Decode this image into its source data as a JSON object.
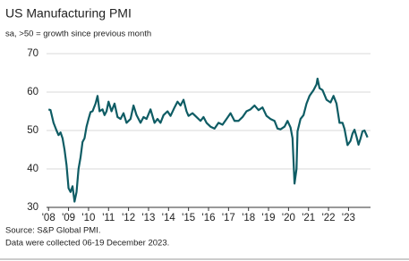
{
  "chart_data": {
    "type": "line",
    "title": "US Manufacturing PMI",
    "subtitle": "sa, >50 = growth since previous month",
    "source": "Source: S&P Global PMI.",
    "note": "Data were collected 06-19 December 2023.",
    "xlim": [
      2007.9,
      2024.1
    ],
    "xticks": [
      {
        "value": 2008,
        "label": "'08"
      },
      {
        "value": 2009,
        "label": "'09"
      },
      {
        "value": 2010,
        "label": "'10"
      },
      {
        "value": 2011,
        "label": "'11"
      },
      {
        "value": 2012,
        "label": "'12"
      },
      {
        "value": 2013,
        "label": "'13"
      },
      {
        "value": 2014,
        "label": "'14"
      },
      {
        "value": 2015,
        "label": "'15"
      },
      {
        "value": 2016,
        "label": "'16"
      },
      {
        "value": 2017,
        "label": "'17"
      },
      {
        "value": 2018,
        "label": "'18"
      },
      {
        "value": 2019,
        "label": "'19"
      },
      {
        "value": 2020,
        "label": "'20"
      },
      {
        "value": 2021,
        "label": "'21"
      },
      {
        "value": 2022,
        "label": "'22"
      },
      {
        "value": 2023,
        "label": "'23"
      }
    ],
    "ylim": [
      30,
      70
    ],
    "yticks": [
      30,
      40,
      50,
      60,
      70
    ],
    "grid": true,
    "x": [
      2008.0,
      2008.1,
      2008.25,
      2008.4,
      2008.5,
      2008.6,
      2008.7,
      2008.8,
      2008.9,
      2009.0,
      2009.1,
      2009.2,
      2009.3,
      2009.4,
      2009.5,
      2009.6,
      2009.7,
      2009.8,
      2009.9,
      2010.0,
      2010.1,
      2010.2,
      2010.35,
      2010.45,
      2010.55,
      2010.7,
      2010.8,
      2010.9,
      2011.0,
      2011.15,
      2011.3,
      2011.45,
      2011.6,
      2011.75,
      2011.9,
      2012.1,
      2012.25,
      2012.4,
      2012.6,
      2012.75,
      2012.9,
      2013.1,
      2013.3,
      2013.45,
      2013.6,
      2013.75,
      2013.95,
      2014.1,
      2014.3,
      2014.45,
      2014.6,
      2014.75,
      2014.9,
      2015.0,
      2015.2,
      2015.4,
      2015.6,
      2015.75,
      2015.9,
      2016.1,
      2016.3,
      2016.5,
      2016.7,
      2016.9,
      2017.1,
      2017.3,
      2017.5,
      2017.7,
      2017.9,
      2018.1,
      2018.3,
      2018.5,
      2018.7,
      2018.9,
      2019.1,
      2019.3,
      2019.45,
      2019.6,
      2019.8,
      2019.95,
      2020.1,
      2020.2,
      2020.3,
      2020.4,
      2020.45,
      2020.6,
      2020.75,
      2020.9,
      2021.05,
      2021.25,
      2021.4,
      2021.45,
      2021.55,
      2021.7,
      2021.9,
      2022.1,
      2022.25,
      2022.4,
      2022.55,
      2022.7,
      2022.8,
      2022.95,
      2023.1,
      2023.2,
      2023.3,
      2023.4,
      2023.5,
      2023.6,
      2023.7,
      2023.8,
      2023.85,
      2023.95
    ],
    "series": [
      {
        "color": "#0e5c64",
        "values": [
          55.5,
          55.3,
          52,
          50,
          48.8,
          49.5,
          48,
          45,
          41,
          35,
          34,
          35.5,
          31.5,
          34,
          40,
          43,
          47,
          48,
          51,
          53,
          54.8,
          55,
          57,
          59,
          55,
          55.5,
          54,
          55,
          57.5,
          55,
          57,
          53.5,
          53,
          54.5,
          52,
          53,
          56.5,
          54,
          52,
          53.5,
          53,
          55.5,
          52,
          53,
          52,
          54,
          55,
          53.8,
          56,
          57.5,
          56.5,
          58,
          55,
          53.8,
          54.5,
          53.5,
          52.5,
          53.5,
          52,
          51,
          50.5,
          52,
          51.5,
          53,
          54.5,
          52.5,
          52.5,
          53.5,
          55,
          55.5,
          56.5,
          55.3,
          56,
          53.8,
          53,
          52.5,
          50.5,
          50.3,
          51,
          52.5,
          50.8,
          48,
          36.2,
          40,
          49.8,
          53,
          54,
          57,
          59,
          60.5,
          62,
          63.5,
          61,
          60.5,
          58,
          57.3,
          59,
          57,
          52,
          52,
          50.4,
          46.2,
          47.3,
          49.2,
          50.2,
          48.4,
          46.3,
          47.9,
          49.8,
          50,
          49.4,
          48.2
        ]
      }
    ]
  }
}
